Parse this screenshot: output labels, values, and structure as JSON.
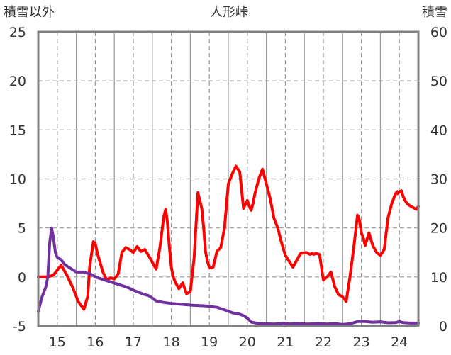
{
  "chart_data": {
    "type": "line",
    "title": "人形峠",
    "ylabel_left": "積雪以外",
    "ylabel_right": "積雪",
    "x_ticks": [
      "15",
      "16",
      "17",
      "18",
      "19",
      "20",
      "21",
      "22",
      "23",
      "24"
    ],
    "y_left_ticks": [
      "25",
      "20",
      "15",
      "10",
      "5",
      "0",
      "-5"
    ],
    "y_right_ticks": [
      "60",
      "50",
      "40",
      "30",
      "20",
      "10",
      "0"
    ],
    "xlim": [
      14.5,
      24.5
    ],
    "ylim_left": [
      -5,
      25
    ],
    "ylim_right": [
      0,
      60
    ],
    "grid": true,
    "colors": {
      "red_series": "#ff0000",
      "purple_series": "#7030a0",
      "frame": "#808080",
      "grid": "#999999"
    },
    "series": [
      {
        "color": "#ff0000",
        "axis": "left",
        "x": [
          14.5,
          14.75,
          14.9,
          15.1,
          15.25,
          15.4,
          15.55,
          15.7,
          15.8,
          15.85,
          15.9,
          15.95,
          16.0,
          16.05,
          16.1,
          16.2,
          16.3,
          16.4,
          16.5,
          16.6,
          16.7,
          16.8,
          16.9,
          17.0,
          17.1,
          17.2,
          17.3,
          17.4,
          17.5,
          17.6,
          17.7,
          17.8,
          17.85,
          17.9,
          17.95,
          18.0,
          18.05,
          18.1,
          18.2,
          18.3,
          18.4,
          18.5,
          18.6,
          18.7,
          18.8,
          18.85,
          18.9,
          18.95,
          19.0,
          19.05,
          19.1,
          19.2,
          19.3,
          19.4,
          19.5,
          19.6,
          19.7,
          19.8,
          19.9,
          20.0,
          20.05,
          20.1,
          20.15,
          20.2,
          20.3,
          20.4,
          20.5,
          20.6,
          20.7,
          20.8,
          20.9,
          21.0,
          21.2,
          21.4,
          21.55,
          21.65,
          21.7,
          21.75,
          21.8,
          21.9,
          22.0,
          22.1,
          22.2,
          22.3,
          22.4,
          22.5,
          22.6,
          22.7,
          22.8,
          22.9,
          22.95,
          23.0,
          23.05,
          23.1,
          23.2,
          23.3,
          23.4,
          23.5,
          23.6,
          23.7,
          23.8,
          23.9,
          23.95
        ],
        "values": [
          0,
          0,
          0.2,
          1.2,
          0.2,
          -1,
          -2.5,
          -3.3,
          -2,
          1,
          2.3,
          3.6,
          3.4,
          2.5,
          1.8,
          0.5,
          -0.3,
          -0.1,
          -0.2,
          0.3,
          2.5,
          3,
          2.8,
          2.5,
          3.1,
          2.6,
          2.8,
          2.2,
          1.5,
          0.8,
          3,
          6.1,
          6.9,
          5.5,
          3,
          1,
          0,
          -0.5,
          -1.2,
          -0.6,
          -1.7,
          -1.5,
          2,
          8.6,
          7,
          5,
          2.6,
          1.6,
          1,
          0.9,
          1,
          2.6,
          3,
          5,
          9.5,
          10.5,
          11.3,
          10.7,
          7,
          7.8,
          7.2,
          6.8,
          7.5,
          8.5,
          10,
          11,
          9.5,
          8,
          6,
          5,
          3.5,
          2.2,
          1,
          2.4,
          2.5,
          2.3,
          2.4,
          2.3,
          2.4,
          2.3,
          -0.3,
          0,
          0.5,
          -1,
          -1.8,
          -2,
          -2.5,
          0,
          3,
          6.3,
          5.8,
          4.5,
          4,
          3.2,
          4.5,
          3.2,
          2.5,
          2.2,
          2.8,
          6,
          7.5,
          8.5,
          8.7
        ]
      },
      {
        "color": "#ff0000",
        "axis": "left",
        "x": [
          23.95,
          24.05,
          24.1,
          24.15,
          24.2,
          24.3,
          24.4,
          24.45,
          24.5
        ],
        "values": [
          8.5,
          8.8,
          8.2,
          7.8,
          7.5,
          7.2,
          7.0,
          6.9,
          7.2
        ]
      },
      {
        "color": "#7030a0",
        "axis": "right",
        "x": [
          14.5,
          14.55,
          14.6,
          14.7,
          14.75,
          14.8,
          14.85,
          14.9,
          14.95,
          15.0,
          15.1,
          15.2,
          15.3,
          15.4,
          15.5,
          15.7,
          15.9,
          16.0,
          16.2,
          16.4,
          16.6,
          16.8,
          16.9,
          17.0,
          17.1,
          17.2,
          17.3,
          17.4,
          17.5,
          17.6,
          17.8,
          18.0,
          18.3,
          18.6,
          18.9,
          19.0,
          19.2,
          19.4,
          19.6,
          19.8,
          19.9,
          20.0,
          20.1,
          20.3,
          20.5,
          20.7,
          20.9,
          21.0,
          21.1,
          21.3,
          21.6,
          21.9,
          22.1,
          22.3,
          22.5,
          22.7,
          22.9,
          23.1,
          23.3,
          23.5,
          23.7,
          23.9,
          24.0,
          24.1,
          24.3,
          24.5
        ],
        "values": [
          3,
          4.5,
          6,
          8,
          10,
          17,
          20,
          18,
          15,
          14,
          13.5,
          12.5,
          12,
          11.5,
          11,
          11,
          10.5,
          10,
          9.5,
          9,
          8.5,
          8,
          7.7,
          7.3,
          7,
          6.7,
          6.4,
          6.2,
          5.7,
          5.1,
          4.8,
          4.6,
          4.4,
          4.2,
          4.1,
          4.0,
          3.8,
          3.3,
          2.7,
          2.4,
          2.1,
          1.6,
          0.8,
          0.5,
          0.45,
          0.4,
          0.5,
          0.6,
          0.4,
          0.5,
          0.4,
          0.5,
          0.4,
          0.5,
          0.3,
          0.45,
          0.9,
          0.9,
          0.75,
          0.85,
          0.65,
          0.7,
          0.9,
          0.7,
          0.6,
          0.6
        ]
      }
    ]
  }
}
